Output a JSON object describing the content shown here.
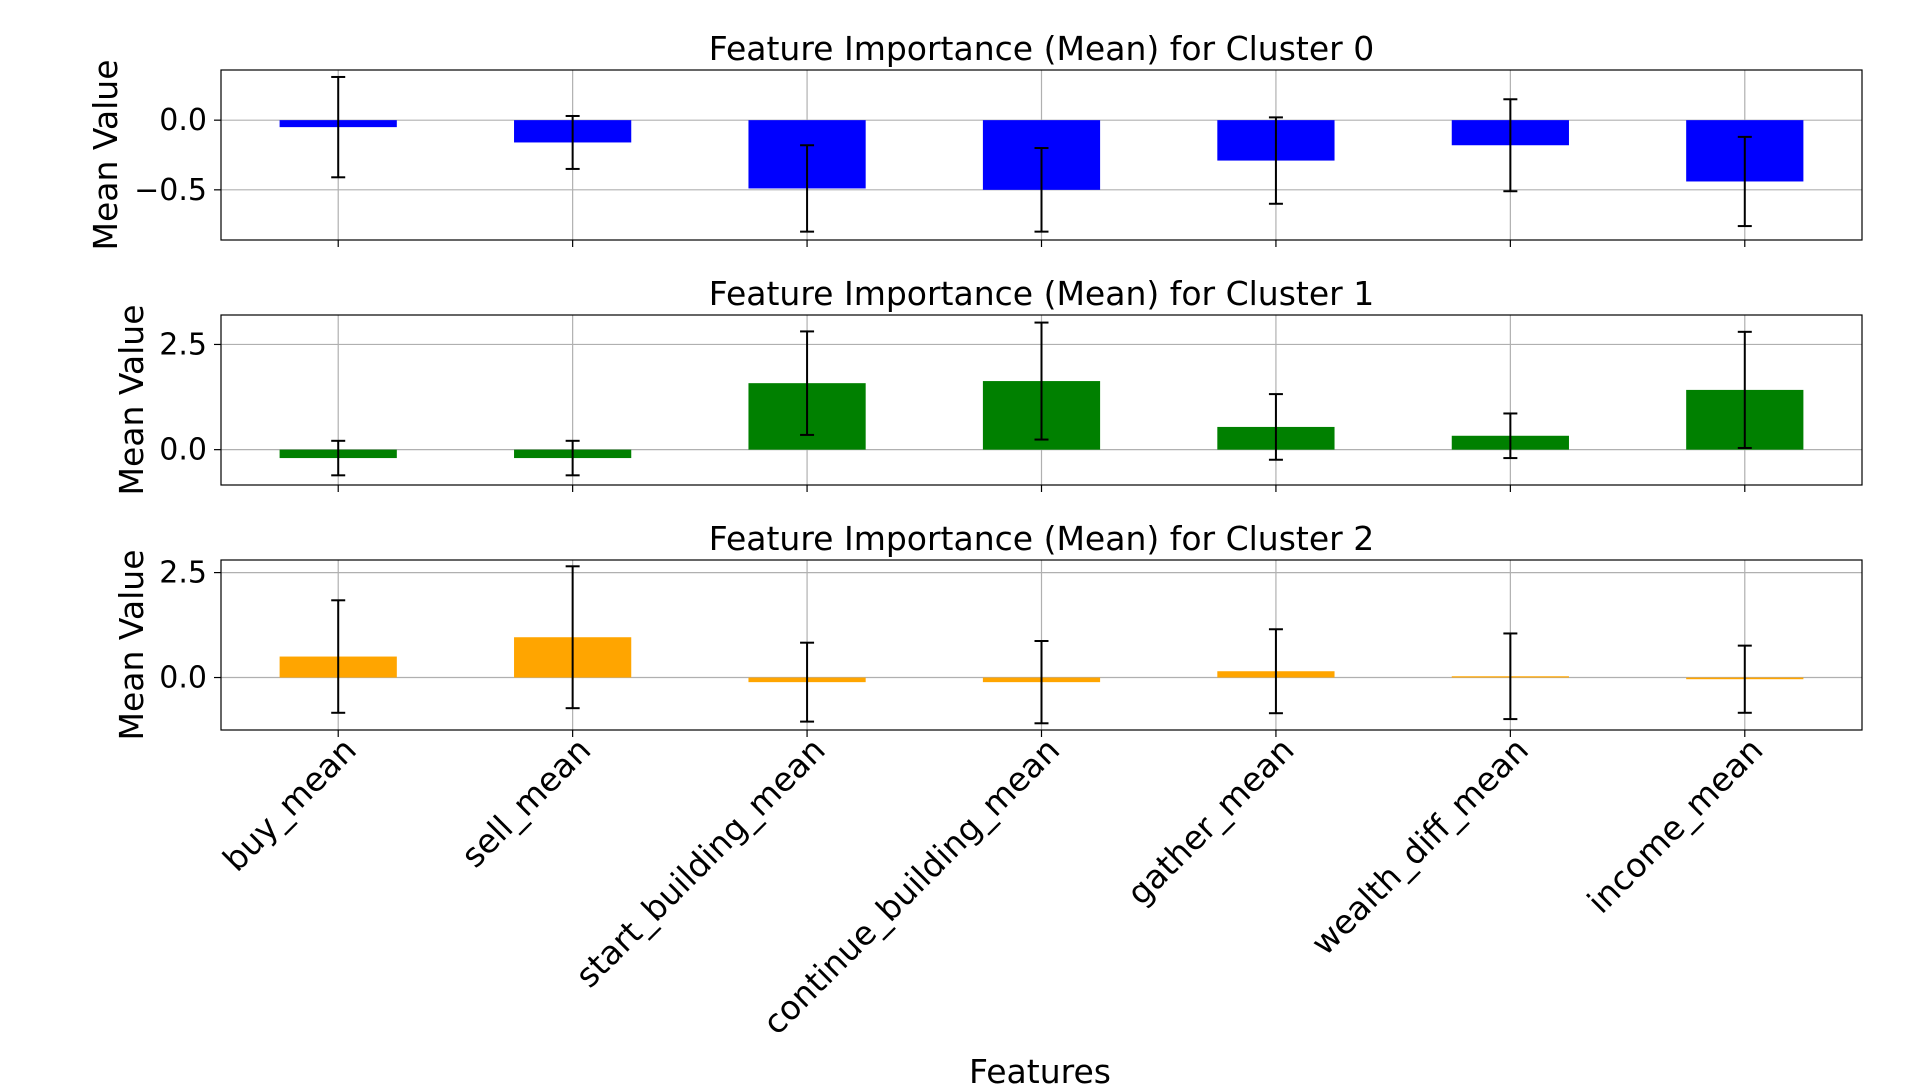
{
  "xlabel": "Features",
  "chart_data": [
    {
      "type": "bar",
      "title": "Feature Importance (Mean) for Cluster 0",
      "ylabel": "Mean Value",
      "categories": [
        "buy_mean",
        "sell_mean",
        "start_building_mean",
        "continue_building_mean",
        "gather_mean",
        "wealth_diff_mean",
        "income_mean"
      ],
      "values": [
        -0.05,
        -0.16,
        -0.49,
        -0.5,
        -0.29,
        -0.18,
        -0.44
      ],
      "error": [
        0.36,
        0.19,
        0.31,
        0.3,
        0.31,
        0.33,
        0.32
      ],
      "color": "#0000ff",
      "ylim": [
        -0.86,
        0.36
      ],
      "yticks": [
        0.0,
        -0.5
      ],
      "ytick_labels": [
        "0.0",
        "−0.5"
      ],
      "grid": true
    },
    {
      "type": "bar",
      "title": "Feature Importance (Mean) for Cluster 1",
      "ylabel": "Mean Value",
      "categories": [
        "buy_mean",
        "sell_mean",
        "start_building_mean",
        "continue_building_mean",
        "gather_mean",
        "wealth_diff_mean",
        "income_mean"
      ],
      "values": [
        -0.2,
        -0.2,
        1.58,
        1.63,
        0.54,
        0.33,
        1.42
      ],
      "error": [
        0.41,
        0.41,
        1.23,
        1.39,
        0.78,
        0.53,
        1.38
      ],
      "color": "#008000",
      "ylim": [
        -0.84,
        3.2
      ],
      "yticks": [
        0.0,
        2.5
      ],
      "ytick_labels": [
        "0.0",
        "2.5"
      ],
      "grid": true
    },
    {
      "type": "bar",
      "title": "Feature Importance (Mean) for Cluster 2",
      "ylabel": "Mean Value",
      "categories": [
        "buy_mean",
        "sell_mean",
        "start_building_mean",
        "continue_building_mean",
        "gather_mean",
        "wealth_diff_mean",
        "income_mean"
      ],
      "values": [
        0.5,
        0.96,
        -0.11,
        -0.11,
        0.15,
        0.03,
        -0.04
      ],
      "error": [
        1.34,
        1.69,
        0.94,
        0.98,
        1.0,
        1.02,
        0.8
      ],
      "color": "#ffa500",
      "ylim": [
        -1.25,
        2.8
      ],
      "yticks": [
        0.0,
        2.5
      ],
      "ytick_labels": [
        "0.0",
        "2.5"
      ],
      "grid": true
    }
  ]
}
